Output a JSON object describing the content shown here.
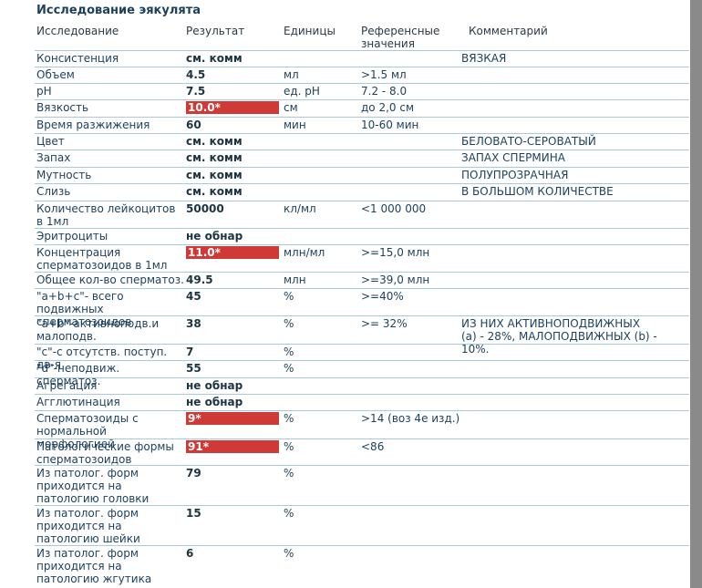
{
  "title": "Исследование эякулята",
  "header": [
    "Исследование",
    "Результат",
    "Единицы",
    "Референсные значения",
    "Комментарий"
  ],
  "rows": [
    {
      "test": "Консистенция",
      "result": "см. комм",
      "comment": "ВЯЗКАЯ"
    },
    {
      "test": "Объем",
      "result": "4.5",
      "units": "мл",
      "reference": ">1.5 мл"
    },
    {
      "test": "pH",
      "result": "7.5",
      "units": "ед. pH",
      "reference": "7.2 - 8.0"
    },
    {
      "test": "Вязкость",
      "result": "10.0*",
      "units": "см",
      "reference": "до 2,0 см"
    },
    {
      "test": "Время разжижения",
      "result": "60",
      "units": "мин",
      "reference": "10-60 мин"
    },
    {
      "test": "Цвет",
      "result": "см. комм",
      "comment": "БЕЛОВАТО-СЕРОВАТЫЙ"
    },
    {
      "test": "Запах",
      "result": "см. комм",
      "comment": "ЗАПАХ СПЕРМИНА"
    },
    {
      "test": "Мутность",
      "result": "см. комм",
      "comment": "ПОЛУПРОЗРАЧНАЯ"
    },
    {
      "test": "Слизь",
      "result": "см. комм",
      "comment": "В БОЛЬШОМ КОЛИЧЕСТВЕ"
    },
    {
      "test": "Количество лейкоцитов в 1мл",
      "result": "50000",
      "units": "кл/мл",
      "reference": "<1 000 000"
    },
    {
      "test": "Эритроциты",
      "result": "не обнар"
    },
    {
      "test": "Концентрация сперматозоидов в 1мл",
      "result": "11.0*",
      "units": "млн/мл",
      "reference": ">=15,0 млн"
    },
    {
      "test": "Общее кол-во сперматоз.",
      "result": "49.5",
      "units": "млн",
      "reference": ">=39,0 млн"
    },
    {
      "test": "\"a+b+c\"- всего подвижных сперматозоидов",
      "result": "45",
      "units": "%",
      "reference": ">=40%"
    },
    {
      "test": "\"a+b\"-активноподв.и малоподв.",
      "result": "38",
      "units": "%",
      "reference": ">= 32%",
      "comment": "ИЗ НИХ АКТИВНОПОДВИЖНЫХ (a) - 28%, МАЛОПОДВИЖНЫХ (b) - 10%."
    },
    {
      "test": "\"c\"-с отсутств. поступ. дв-я",
      "result": "7",
      "units": "%"
    },
    {
      "test": "\"d\"-неподвиж. сперматоз.",
      "result": "55",
      "units": "%"
    },
    {
      "test": "Агрегация",
      "result": "не обнар"
    },
    {
      "test": "Агглютинация",
      "result": "не обнар"
    },
    {
      "test": "Сперматозоиды с нормальной морфологией",
      "result": "9*",
      "units": "%",
      "reference": ">14 (воз 4е изд.)"
    },
    {
      "test": "Патологические формы сперматозоидов",
      "result": "91*",
      "units": "%",
      "reference": "<86"
    },
    {
      "test": "Из патолог. форм приходится на патологию головки",
      "result": "79",
      "units": "%"
    },
    {
      "test": "Из патолог. форм приходится на патологию шейки",
      "result": "15",
      "units": "%"
    },
    {
      "test": "Из патолог. форм приходится на патологию жгутика",
      "result": "6",
      "units": "%"
    }
  ]
}
